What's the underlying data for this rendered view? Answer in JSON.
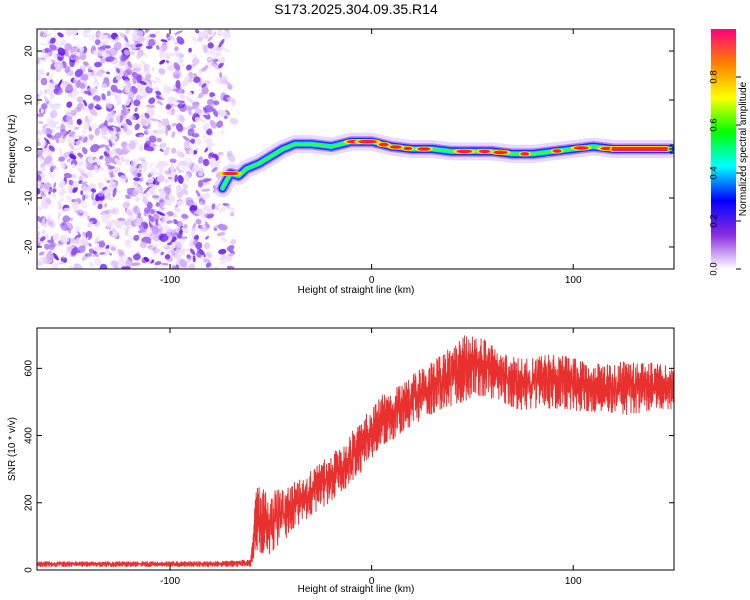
{
  "figure": {
    "title": "S173.2025.304.09.35.R14"
  },
  "chart_data": [
    {
      "type": "heatmap",
      "title": "S173.2025.304.09.35.R14",
      "xlabel": "Height of straight line (km)",
      "ylabel": "Frequency (Hz)",
      "xlim": [
        -166,
        150
      ],
      "ylim": [
        -24.5,
        24.5
      ],
      "xticks": [
        -100,
        0,
        100
      ],
      "yticks": [
        -20,
        -10,
        0,
        10,
        20
      ],
      "noise_region_x": [
        -166,
        -72
      ],
      "signal_ridge": {
        "x": [
          -74,
          -70,
          -66,
          -62,
          -56,
          -50,
          -44,
          -38,
          -30,
          -20,
          -10,
          0,
          10,
          20,
          30,
          40,
          50,
          60,
          70,
          80,
          90,
          100,
          110,
          120,
          130,
          140,
          148
        ],
        "frequency_hz": [
          -8,
          -5,
          -5.5,
          -4,
          -3,
          -1.5,
          0,
          1,
          1,
          0.5,
          1.5,
          1.5,
          0.5,
          0,
          0,
          -0.5,
          -0.5,
          -0.5,
          -1,
          -1,
          -0.5,
          0,
          0.5,
          0,
          0,
          0,
          0
        ]
      },
      "colorbar": {
        "label": "Normalized spectral amplitude",
        "range": [
          0,
          1
        ],
        "ticks": [
          0.0,
          0.2,
          0.4,
          0.6,
          0.8
        ],
        "tick_labels": [
          "0.0",
          "0.2",
          "0.4",
          "0.6",
          "0.8"
        ],
        "colors": [
          "#ffffff",
          "#8a2be2",
          "#0000ff",
          "#00ffff",
          "#00ff00",
          "#ffff00",
          "#ff7f00",
          "#ff0080"
        ]
      }
    },
    {
      "type": "line",
      "xlabel": "Height of straight line (km)",
      "ylabel": "SNR (10 * v/v)",
      "xlim": [
        -166,
        150
      ],
      "ylim": [
        0,
        720
      ],
      "xticks": [
        -100,
        0,
        100
      ],
      "yticks": [
        0,
        200,
        400,
        600
      ],
      "series": [
        {
          "name": "SNR",
          "color": "#e8312f",
          "envelope_x": [
            -166,
            -80,
            -60,
            -57,
            -52,
            -45,
            -35,
            -25,
            -15,
            -5,
            5,
            15,
            25,
            35,
            45,
            55,
            65,
            75,
            85,
            95,
            105,
            115,
            125,
            135,
            145,
            150
          ],
          "envelope_low": [
            10,
            10,
            10,
            60,
            40,
            80,
            140,
            180,
            230,
            290,
            360,
            410,
            450,
            480,
            500,
            520,
            500,
            470,
            480,
            480,
            470,
            470,
            460,
            470,
            480,
            480
          ],
          "envelope_high": [
            25,
            25,
            30,
            260,
            230,
            240,
            270,
            320,
            370,
            450,
            520,
            560,
            600,
            640,
            700,
            690,
            650,
            630,
            640,
            640,
            620,
            610,
            620,
            620,
            610,
            600
          ]
        }
      ]
    }
  ]
}
